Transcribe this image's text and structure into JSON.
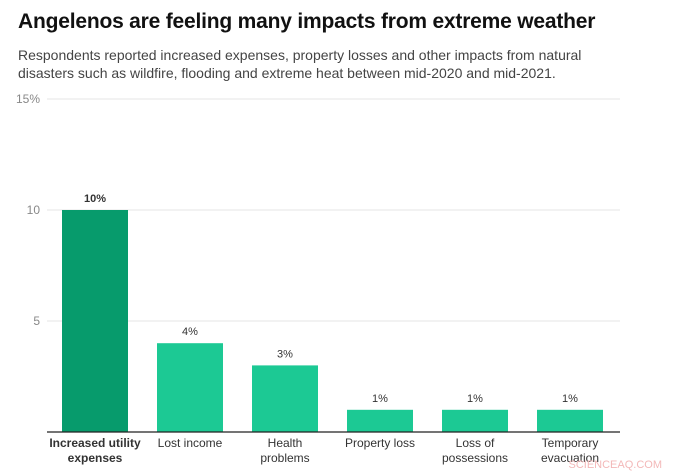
{
  "title": "Angelenos are feeling many impacts from extreme weather",
  "subtitle": "Respondents reported increased expenses, property losses and other impacts from natural disasters such as wildfire, flooding and extreme heat between mid-2020 and mid-2021.",
  "watermark": "SCIENCEAQ.COM",
  "chart_data": {
    "type": "bar",
    "categories": [
      [
        "Increased utility",
        "expenses"
      ],
      [
        "Lost income"
      ],
      [
        "Health",
        "problems"
      ],
      [
        "Property loss"
      ],
      [
        "Loss of",
        "possessions"
      ],
      [
        "Temporary",
        "evacuation"
      ]
    ],
    "values": [
      10,
      4,
      3,
      1,
      1,
      1
    ],
    "data_labels": [
      "10%",
      "4%",
      "3%",
      "1%",
      "1%",
      "1%"
    ],
    "highlighted_index": 0,
    "ylim": [
      0,
      15
    ],
    "yticks": [
      {
        "value": 15,
        "label": "15%"
      },
      {
        "value": 10,
        "label": "10"
      },
      {
        "value": 5,
        "label": "5"
      }
    ],
    "grid": true,
    "xlabel": "",
    "ylabel": "",
    "colors": {
      "highlight": "#079b6c",
      "bar": "#1cc994",
      "grid": "#e6e6e6",
      "axis": "#222222"
    }
  }
}
